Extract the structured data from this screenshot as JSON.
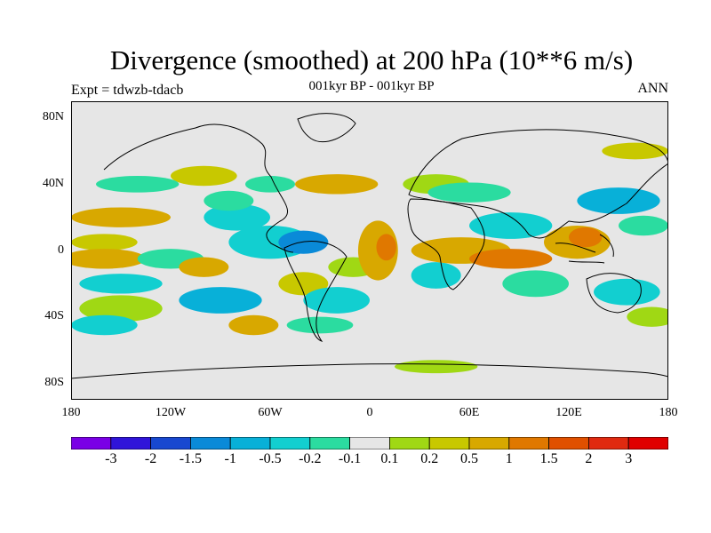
{
  "header": {
    "title": "Divergence (smoothed) at 200 hPa (10**6 m/s)",
    "subtitle": "001kyr BP - 001kyr BP",
    "left_label": "Expt = tdwzb-tdacb",
    "right_label": "ANN"
  },
  "axes": {
    "x_ticks": [
      "180",
      "120W",
      "60W",
      "0",
      "60E",
      "120E",
      "180"
    ],
    "y_ticks": [
      "80N",
      "40N",
      "0",
      "40S",
      "80S"
    ]
  },
  "colorbar": {
    "colors": [
      "#7a00e6",
      "#3014d9",
      "#1848d0",
      "#0a8ad8",
      "#08b0d8",
      "#12cfd0",
      "#2bdca0",
      "#e6e6e6",
      "#a0d814",
      "#c8c800",
      "#d8a800",
      "#e07800",
      "#e05000",
      "#e02a10",
      "#e00000"
    ],
    "labels": [
      "-3",
      "-2",
      "-1.5",
      "-1",
      "-0.5",
      "-0.2",
      "-0.1",
      "0.1",
      "0.2",
      "0.5",
      "1",
      "1.5",
      "2",
      "3"
    ]
  },
  "map": {
    "background": "#e6e6e6",
    "x_range": [
      -180,
      180
    ],
    "y_range": [
      -90,
      90
    ],
    "field": [
      {
        "lon": -60,
        "lat": 5,
        "rx": 25,
        "ry": 10,
        "c": "#12cfd0"
      },
      {
        "lon": -40,
        "lat": 5,
        "rx": 15,
        "ry": 7,
        "c": "#0a8ad8"
      },
      {
        "lon": -80,
        "lat": 20,
        "rx": 20,
        "ry": 8,
        "c": "#12cfd0"
      },
      {
        "lon": -85,
        "lat": 30,
        "rx": 15,
        "ry": 6,
        "c": "#2bdca0"
      },
      {
        "lon": -100,
        "lat": 45,
        "rx": 20,
        "ry": 6,
        "c": "#c8c800"
      },
      {
        "lon": -140,
        "lat": 40,
        "rx": 25,
        "ry": 5,
        "c": "#2bdca0"
      },
      {
        "lon": -150,
        "lat": 20,
        "rx": 30,
        "ry": 6,
        "c": "#d8a800"
      },
      {
        "lon": -160,
        "lat": 5,
        "rx": 20,
        "ry": 5,
        "c": "#c8c800"
      },
      {
        "lon": -160,
        "lat": -5,
        "rx": 25,
        "ry": 6,
        "c": "#d8a800"
      },
      {
        "lon": -120,
        "lat": -5,
        "rx": 20,
        "ry": 6,
        "c": "#2bdca0"
      },
      {
        "lon": -150,
        "lat": -20,
        "rx": 25,
        "ry": 6,
        "c": "#12cfd0"
      },
      {
        "lon": -100,
        "lat": -10,
        "rx": 15,
        "ry": 6,
        "c": "#d8a800"
      },
      {
        "lon": -150,
        "lat": -35,
        "rx": 25,
        "ry": 8,
        "c": "#a0d814"
      },
      {
        "lon": -160,
        "lat": -45,
        "rx": 20,
        "ry": 6,
        "c": "#12cfd0"
      },
      {
        "lon": -90,
        "lat": -30,
        "rx": 25,
        "ry": 8,
        "c": "#08b0d8"
      },
      {
        "lon": -70,
        "lat": -45,
        "rx": 15,
        "ry": 6,
        "c": "#d8a800"
      },
      {
        "lon": -40,
        "lat": -20,
        "rx": 15,
        "ry": 7,
        "c": "#c8c800"
      },
      {
        "lon": -20,
        "lat": -30,
        "rx": 20,
        "ry": 8,
        "c": "#12cfd0"
      },
      {
        "lon": -10,
        "lat": -10,
        "rx": 15,
        "ry": 6,
        "c": "#a0d814"
      },
      {
        "lon": 5,
        "lat": 0,
        "rx": 12,
        "ry": 18,
        "c": "#d8a800"
      },
      {
        "lon": 10,
        "lat": 2,
        "rx": 6,
        "ry": 8,
        "c": "#e07800"
      },
      {
        "lon": 40,
        "lat": -15,
        "rx": 15,
        "ry": 8,
        "c": "#12cfd0"
      },
      {
        "lon": 55,
        "lat": 0,
        "rx": 30,
        "ry": 8,
        "c": "#d8a800"
      },
      {
        "lon": 85,
        "lat": -5,
        "rx": 25,
        "ry": 6,
        "c": "#e07800"
      },
      {
        "lon": 85,
        "lat": 15,
        "rx": 25,
        "ry": 8,
        "c": "#12cfd0"
      },
      {
        "lon": 100,
        "lat": -20,
        "rx": 20,
        "ry": 8,
        "c": "#2bdca0"
      },
      {
        "lon": 125,
        "lat": 5,
        "rx": 20,
        "ry": 10,
        "c": "#d8a800"
      },
      {
        "lon": 130,
        "lat": 8,
        "rx": 10,
        "ry": 6,
        "c": "#e07800"
      },
      {
        "lon": 150,
        "lat": 30,
        "rx": 25,
        "ry": 8,
        "c": "#08b0d8"
      },
      {
        "lon": 165,
        "lat": 15,
        "rx": 15,
        "ry": 6,
        "c": "#2bdca0"
      },
      {
        "lon": 155,
        "lat": -25,
        "rx": 20,
        "ry": 8,
        "c": "#12cfd0"
      },
      {
        "lon": 170,
        "lat": -40,
        "rx": 15,
        "ry": 6,
        "c": "#a0d814"
      },
      {
        "lon": 40,
        "lat": 40,
        "rx": 20,
        "ry": 6,
        "c": "#a0d814"
      },
      {
        "lon": 60,
        "lat": 35,
        "rx": 25,
        "ry": 6,
        "c": "#2bdca0"
      },
      {
        "lon": -20,
        "lat": 40,
        "rx": 25,
        "ry": 6,
        "c": "#d8a800"
      },
      {
        "lon": -60,
        "lat": 40,
        "rx": 15,
        "ry": 5,
        "c": "#2bdca0"
      },
      {
        "lon": 160,
        "lat": 60,
        "rx": 20,
        "ry": 5,
        "c": "#c8c800"
      },
      {
        "lon": 40,
        "lat": -70,
        "rx": 25,
        "ry": 4,
        "c": "#a0d814"
      },
      {
        "lon": -30,
        "lat": -45,
        "rx": 20,
        "ry": 5,
        "c": "#2bdca0"
      }
    ]
  }
}
